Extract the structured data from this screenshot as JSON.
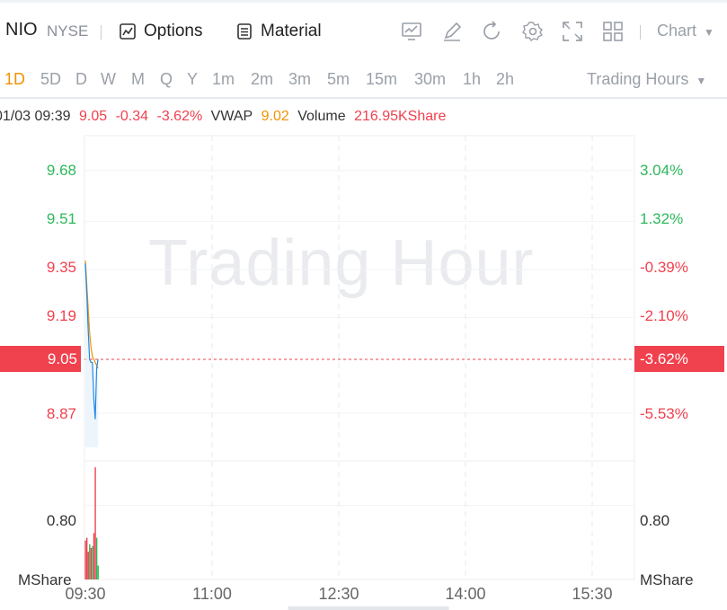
{
  "header": {
    "symbol": "NIO",
    "exchange": "NYSE",
    "options_label": "Options",
    "material_label": "Material",
    "chart_select": "Chart",
    "tool_icons": [
      "chart-display-icon",
      "draw-pen-icon",
      "reset-icon",
      "settings-icon",
      "fullscreen-icon",
      "layout-grid-icon"
    ]
  },
  "periods": [
    "1D",
    "5D",
    "D",
    "W",
    "M",
    "Q",
    "Y",
    "1m",
    "2m",
    "3m",
    "5m",
    "15m",
    "30m",
    "1h",
    "2h"
  ],
  "active_period": "1D",
  "trading_hours_label": "Trading Hours",
  "info": {
    "datetime": "01/03 09:39",
    "price": "9.05",
    "change": "-0.34",
    "change_pct": "-3.62%",
    "vwap_label": "VWAP",
    "vwap": "9.02",
    "volume_label": "Volume",
    "volume": "216.95KShare"
  },
  "watermark": "Trading Hour",
  "current": {
    "price": "9.05",
    "pct": "-3.62%"
  },
  "colors": {
    "up": "#2db85c",
    "down": "#f0414e",
    "vwap": "#f29200",
    "price_line": "#1e88e5",
    "accent": "#f29200"
  },
  "chart_data": {
    "type": "line",
    "prev_close": 9.39,
    "ylim": [
      8.8,
      9.75
    ],
    "price_ticks": [
      9.68,
      9.51,
      9.35,
      9.19,
      9.05,
      8.87
    ],
    "pct_ticks": [
      "3.04%",
      "1.32%",
      "-0.39%",
      "-2.10%",
      "-3.62%",
      "-5.53%"
    ],
    "x_ticks": [
      "09:30",
      "11:00",
      "12:30",
      "14:00",
      "15:30"
    ],
    "series": [
      {
        "name": "Price",
        "x": [
          "09:30",
          "09:31",
          "09:32",
          "09:33",
          "09:34",
          "09:35",
          "09:36",
          "09:37",
          "09:38",
          "09:39"
        ],
        "values": [
          9.37,
          9.27,
          9.15,
          9.05,
          9.04,
          9.04,
          8.92,
          8.85,
          9.02,
          9.05
        ]
      },
      {
        "name": "VWAP",
        "x": [
          "09:30",
          "09:31",
          "09:32",
          "09:33",
          "09:34",
          "09:35",
          "09:36",
          "09:37",
          "09:38",
          "09:39"
        ],
        "values": [
          9.38,
          9.3,
          9.22,
          9.14,
          9.09,
          9.06,
          9.05,
          9.04,
          9.03,
          9.02
        ]
      }
    ],
    "volume": {
      "unit": "MShare",
      "tick": "0.80",
      "ylim": [
        0,
        1.26
      ],
      "bars": [
        {
          "x": "09:30",
          "v": 0.42,
          "dir": "down"
        },
        {
          "x": "09:31",
          "v": 0.45,
          "dir": "down"
        },
        {
          "x": "09:32",
          "v": 0.3,
          "dir": "down"
        },
        {
          "x": "09:33",
          "v": 0.38,
          "dir": "up"
        },
        {
          "x": "09:34",
          "v": 0.34,
          "dir": "down"
        },
        {
          "x": "09:35",
          "v": 0.36,
          "dir": "up"
        },
        {
          "x": "09:36",
          "v": 0.5,
          "dir": "down"
        },
        {
          "x": "09:37",
          "v": 1.21,
          "dir": "down"
        },
        {
          "x": "09:38",
          "v": 0.45,
          "dir": "up"
        },
        {
          "x": "09:39",
          "v": 0.15,
          "dir": "up"
        }
      ]
    }
  }
}
